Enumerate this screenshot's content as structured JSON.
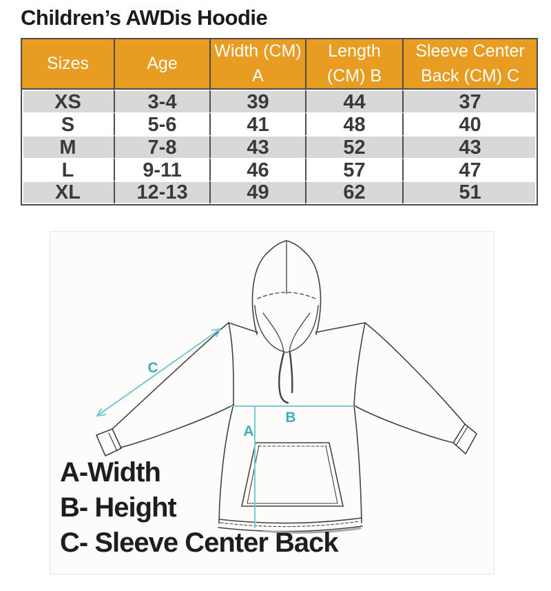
{
  "title": "Children’s AWDis Hoodie",
  "table": {
    "headers": [
      "Sizes",
      "Age",
      "Width (CM) A",
      "Length (CM) B",
      "Sleeve Center Back (CM) C"
    ],
    "rows": [
      [
        "XS",
        "3-4",
        "39",
        "44",
        "37"
      ],
      [
        "S",
        "5-6",
        "41",
        "48",
        "40"
      ],
      [
        "M",
        "7-8",
        "43",
        "52",
        "43"
      ],
      [
        "L",
        "9-11",
        "46",
        "57",
        "47"
      ],
      [
        "XL",
        "12-13",
        "49",
        "62",
        "51"
      ]
    ]
  },
  "diagram": {
    "measure_labels": {
      "a": "A",
      "b": "B",
      "c": "C"
    },
    "legend": [
      "A-Width",
      "B- Height",
      "C- Sleeve Center Back"
    ]
  },
  "colors": {
    "header_orange": "#E89C21",
    "row_gray": "#D8D8D8",
    "border_dark": "#4C4C4C",
    "measure_teal": "#74CBD3",
    "measure_label_teal": "#3FACBA"
  }
}
